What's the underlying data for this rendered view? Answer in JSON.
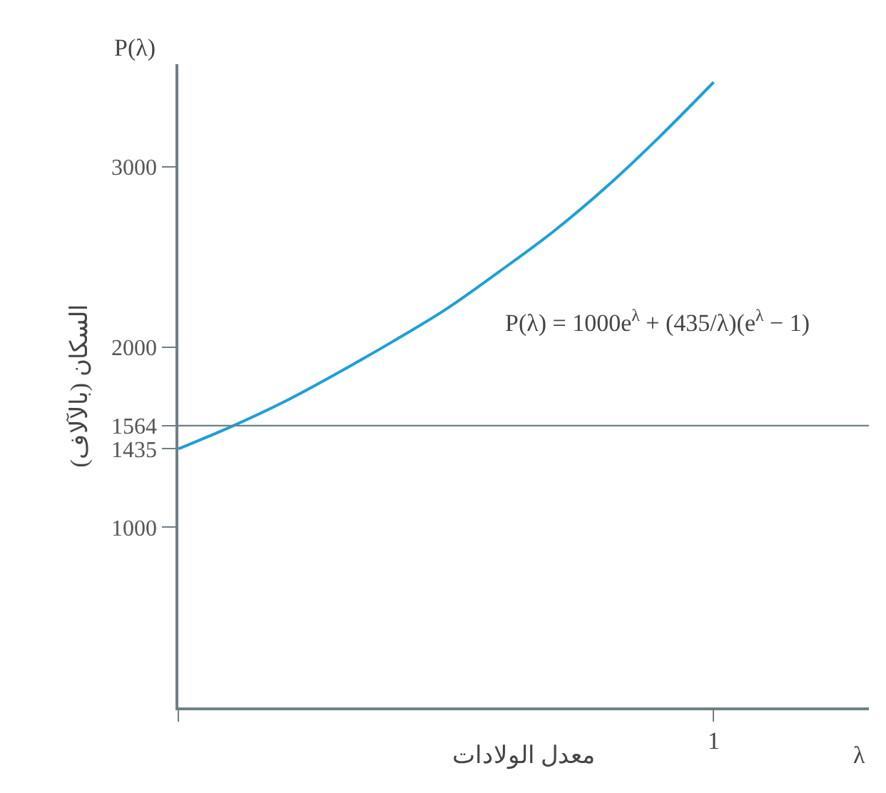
{
  "chart_data": {
    "type": "line",
    "xlabel": "معدل الولادات",
    "ylabel": "السكان (بالآلاف)",
    "annotations": [
      "P(λ)",
      "λ",
      "P(λ) = 1000e$^{λ}$ + (435/λ)(e$^{λ}$ − 1)",
      "1"
    ],
    "categories": [
      null,
      null,
      null,
      null,
      null,
      null,
      null,
      null,
      null,
      null,
      null
    ],
    "series": [
      {
        "color": "#1e9fd8",
        "values": [
          1435,
          1560,
          1700,
          1860,
          2030,
          2210,
          2420,
          2640,
          2890,
          3170,
          3470
        ]
      }
    ],
    "ylim": [
      0,
      3570
    ],
    "yticks": [
      1000,
      1435,
      1564,
      2000,
      3000
    ],
    "ref_lines": [
      {
        "axis": "y",
        "value": 1564,
        "color": "#6f7f86"
      }
    ],
    "marker": "none",
    "line_style": "solid"
  }
}
